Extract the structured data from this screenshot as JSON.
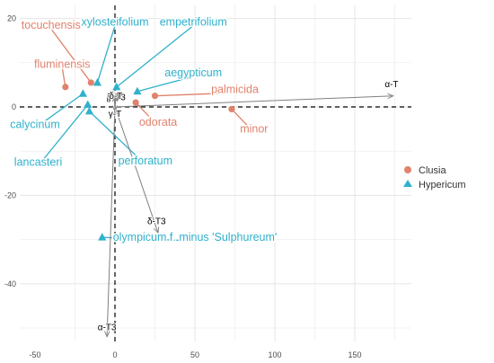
{
  "colors": {
    "clusia": "#E0826C",
    "hypericum": "#2FB1CC",
    "grid": "#e6e6e6",
    "arrow": "#808080",
    "zero": "#000000"
  },
  "chart_data": {
    "type": "scatter",
    "xlim": [
      -60,
      180
    ],
    "ylim": [
      -55,
      22
    ],
    "x_ticks": [
      -50,
      0,
      50,
      100,
      150
    ],
    "y_ticks": [
      -40,
      -20,
      0,
      20
    ],
    "x_tick_labels": [
      "-50",
      "0",
      "50",
      "100",
      "150"
    ],
    "y_tick_labels": [
      "-40",
      "-20",
      "0",
      "20"
    ],
    "grid": true,
    "zero_lines": "dashed",
    "legend": {
      "position": "right",
      "entries": [
        "Clusia",
        "Hypericum"
      ]
    },
    "series": [
      {
        "name": "Clusia",
        "shape": "circle",
        "points": [
          {
            "label": "tocuchensis",
            "x": -15,
            "y": 5.5,
            "lx": -40,
            "ly": 18.5
          },
          {
            "label": "fluminensis",
            "x": -31,
            "y": 4.5,
            "lx": -33,
            "ly": 9.7
          },
          {
            "label": "palmicida",
            "x": 25,
            "y": 2.5,
            "lx": 75,
            "ly": 4
          },
          {
            "label": "odorata",
            "x": 13,
            "y": 1,
            "lx": 27,
            "ly": -3.5
          },
          {
            "label": "minor",
            "x": 73,
            "y": -0.5,
            "lx": 87,
            "ly": -5
          }
        ]
      },
      {
        "name": "Hypericum",
        "shape": "triangle",
        "points": [
          {
            "label": "xylosteifolium",
            "x": -11,
            "y": 5.5,
            "lx": 0,
            "ly": 19.2
          },
          {
            "label": "empetrifolium",
            "x": 1,
            "y": 4.5,
            "lx": 49,
            "ly": 19.2
          },
          {
            "label": "aegypticum",
            "x": 14,
            "y": 3.5,
            "lx": 49,
            "ly": 7.7
          },
          {
            "label": "calycinum",
            "x": -20,
            "y": 3,
            "lx": -50,
            "ly": -4
          },
          {
            "label": "lancasteri",
            "x": -17,
            "y": 0.5,
            "lx": -48,
            "ly": -12.5
          },
          {
            "label": "perforatum",
            "x": -16,
            "y": -1,
            "lx": 19,
            "ly": -12.2
          },
          {
            "label": "olympicum f. minus 'Sulphureum'",
            "x": -8,
            "y": -29.5,
            "lx": 50,
            "ly": -29.5
          }
        ]
      }
    ],
    "vectors": [
      {
        "label": "α-T",
        "x": 174,
        "y": 2.5,
        "lx": 173,
        "ly": 4.5
      },
      {
        "label": "δ-T3",
        "x": 27,
        "y": -28.5,
        "lx": 26,
        "ly": -26.5
      },
      {
        "label": "α-T3",
        "x": -5,
        "y": -52,
        "lx": -5,
        "ly": -50.5
      },
      {
        "label": "β-T",
        "x": -1,
        "y": 3.5,
        "lx": -1,
        "ly": 1.5
      },
      {
        "label": "γ-T3",
        "x": 1,
        "y": 3,
        "lx": 1,
        "ly": 1.5
      },
      {
        "label": "δ-T",
        "x": 0,
        "y": 2.5,
        "lx": 0.5,
        "ly": 1.8
      },
      {
        "label": "γ-T",
        "x": 0,
        "y": -1,
        "lx": 0,
        "ly": -2.2
      }
    ]
  }
}
